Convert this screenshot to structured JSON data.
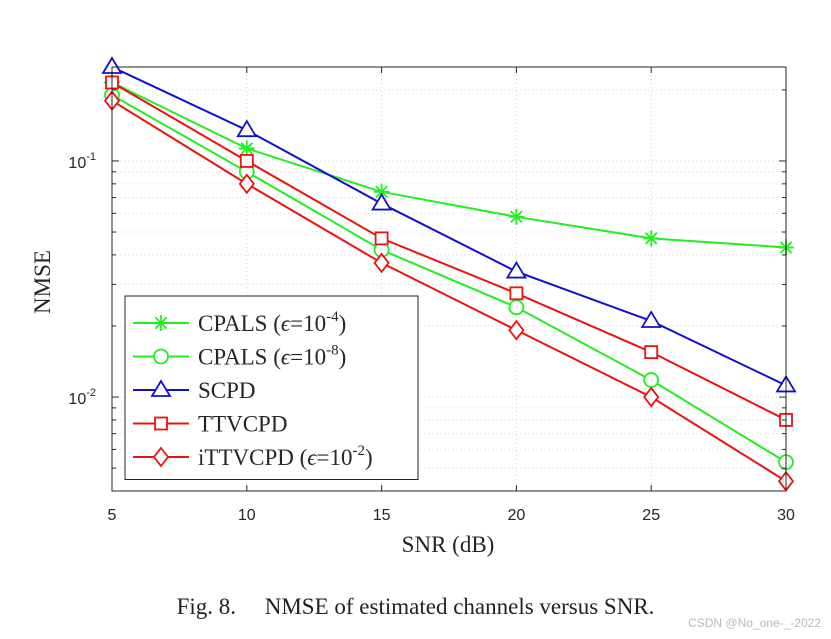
{
  "chart_data": {
    "type": "line",
    "x": [
      5,
      10,
      15,
      20,
      25,
      30
    ],
    "xlim": [
      5,
      30
    ],
    "ylim": [
      0.004,
      0.25
    ],
    "yscale": "log",
    "xlabel": "SNR (dB)",
    "ylabel": "NMSE",
    "x_ticks": [
      "5",
      "10",
      "15",
      "20",
      "25",
      "30"
    ],
    "y_tick_labels": [
      {
        "value": 0.1,
        "base": "10",
        "exp": "-1"
      },
      {
        "value": 0.01,
        "base": "10",
        "exp": "-2"
      }
    ],
    "grid": "dotted",
    "legend_position": "bottom-left",
    "series": [
      {
        "name": "CPALS (ϵ=10-4)",
        "label_main": "CPALS (",
        "label_eps": "ϵ",
        "label_eq": "=10",
        "label_exp": "-4",
        "label_close": ")",
        "color": "#22ee22",
        "marker": "asterisk",
        "values": [
          0.215,
          0.113,
          0.074,
          0.058,
          0.047,
          0.043
        ]
      },
      {
        "name": "CPALS (ϵ=10-8)",
        "label_main": "CPALS (",
        "label_eps": "ϵ",
        "label_eq": "=10",
        "label_exp": "-8",
        "label_close": ")",
        "color": "#22ee22",
        "marker": "circle",
        "values": [
          0.19,
          0.09,
          0.042,
          0.024,
          0.0118,
          0.0053
        ]
      },
      {
        "name": "SCPD",
        "label_main": "SCPD",
        "label_eps": "",
        "label_eq": "",
        "label_exp": "",
        "label_close": "",
        "color": "#1111cc",
        "marker": "triangle",
        "values": [
          0.25,
          0.135,
          0.066,
          0.034,
          0.021,
          0.0112
        ]
      },
      {
        "name": "TTVCPD",
        "label_main": "TTVCPD",
        "label_eps": "",
        "label_eq": "",
        "label_exp": "",
        "label_close": "",
        "color": "#ee1111",
        "marker": "square",
        "values": [
          0.215,
          0.1,
          0.047,
          0.0275,
          0.0155,
          0.008
        ]
      },
      {
        "name": "iTTVCPD (ϵ=10-2)",
        "label_main": "iTTVCPD (",
        "label_eps": "ϵ",
        "label_eq": "=10",
        "label_exp": "-2",
        "label_close": ")",
        "color": "#ee1111",
        "marker": "diamond",
        "values": [
          0.18,
          0.08,
          0.037,
          0.0192,
          0.01,
          0.0044
        ]
      }
    ]
  },
  "caption": {
    "label": "Fig. 8.",
    "text": "NMSE of estimated channels versus SNR."
  },
  "watermark": "CSDN @No_one-_-2022"
}
